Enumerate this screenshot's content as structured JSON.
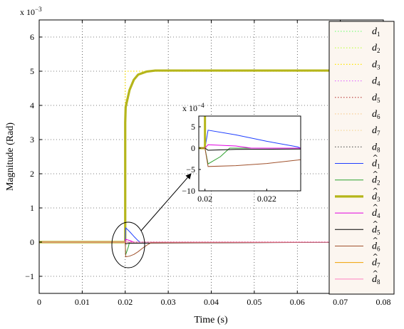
{
  "chart_data": [
    {
      "type": "line",
      "xlabel": "Time (s)",
      "ylabel": "Magnitude (Rad)",
      "x_ticks": [
        "0",
        "0.01",
        "0.02",
        "0.03",
        "0.04",
        "0.05",
        "0.06",
        "0.07",
        "0.08"
      ],
      "y_ticks": [
        "−1",
        "0",
        "1",
        "2",
        "3",
        "4",
        "5",
        "6"
      ],
      "y_exponent": "x 10",
      "y_exponent_power": "−3",
      "xlim": [
        0,
        0.08
      ],
      "ylim": [
        -1.5,
        6.5
      ],
      "grid": true,
      "legend_position": "right",
      "series": [
        {
          "name": "d",
          "sub": "1",
          "hat": false,
          "color": "#7fff7f",
          "style": "dotted",
          "x": [
            0,
            0.08
          ],
          "y": [
            0,
            0
          ]
        },
        {
          "name": "d",
          "sub": "2",
          "hat": false,
          "color": "#bfff3f",
          "style": "dotted",
          "x": [
            0,
            0.08
          ],
          "y": [
            0,
            0
          ]
        },
        {
          "name": "d",
          "sub": "3",
          "hat": false,
          "color": "#ffe600",
          "style": "dotted",
          "x": [
            0,
            0.02,
            0.02,
            0.08
          ],
          "y": [
            0,
            0,
            5,
            5
          ]
        },
        {
          "name": "d",
          "sub": "4",
          "hat": false,
          "color": "#e066ff",
          "style": "dotted",
          "x": [
            0,
            0.08
          ],
          "y": [
            0,
            0
          ]
        },
        {
          "name": "d",
          "sub": "5",
          "hat": false,
          "color": "#c0504d",
          "style": "dotted",
          "x": [
            0,
            0.08
          ],
          "y": [
            0,
            0
          ]
        },
        {
          "name": "d",
          "sub": "6",
          "hat": false,
          "color": "#f7c98b",
          "style": "dotted",
          "x": [
            0,
            0.08
          ],
          "y": [
            0,
            0
          ]
        },
        {
          "name": "d",
          "sub": "7",
          "hat": false,
          "color": "#f4d89a",
          "style": "dotted",
          "x": [
            0,
            0.08
          ],
          "y": [
            0,
            0
          ]
        },
        {
          "name": "d",
          "sub": "8",
          "hat": false,
          "color": "#555555",
          "style": "dotted",
          "x": [
            0,
            0.08
          ],
          "y": [
            0,
            0
          ]
        },
        {
          "name": "d",
          "sub": "1",
          "hat": true,
          "color": "#1f3fff",
          "style": "solid",
          "x": [
            0,
            0.02,
            0.0201,
            0.021,
            0.022,
            0.023,
            0.0235,
            0.08
          ],
          "y": [
            0,
            0,
            0.42,
            0.31,
            0.17,
            0.04,
            0,
            0
          ]
        },
        {
          "name": "d",
          "sub": "2",
          "hat": true,
          "color": "#2ca02c",
          "style": "solid",
          "x": [
            0,
            0.02,
            0.0201,
            0.0207,
            0.021,
            0.022,
            0.08
          ],
          "y": [
            0,
            0,
            -0.37,
            -0.15,
            0,
            0,
            0
          ]
        },
        {
          "name": "d",
          "sub": "3",
          "hat": true,
          "color": "#b5b51a",
          "style": "thick",
          "x": [
            0,
            0.02,
            0.02,
            0.0201,
            0.021,
            0.022,
            0.023,
            0.025,
            0.027,
            0.08
          ],
          "y": [
            0,
            0,
            3.5,
            3.95,
            4.45,
            4.75,
            4.9,
            4.99,
            5.02,
            5.02
          ]
        },
        {
          "name": "d",
          "sub": "4",
          "hat": true,
          "color": "#e000e0",
          "style": "solid",
          "x": [
            0,
            0.02,
            0.0201,
            0.021,
            0.022,
            0.08
          ],
          "y": [
            0,
            0,
            0.08,
            0.05,
            0,
            0
          ]
        },
        {
          "name": "d",
          "sub": "5",
          "hat": true,
          "color": "#000000",
          "style": "solid",
          "x": [
            0,
            0.02,
            0.0201,
            0.021,
            0.08
          ],
          "y": [
            0,
            0,
            -0.05,
            -0.03,
            0
          ]
        },
        {
          "name": "d",
          "sub": "6",
          "hat": true,
          "color": "#a0522d",
          "style": "solid",
          "x": [
            0,
            0.02,
            0.0201,
            0.021,
            0.022,
            0.023,
            0.024,
            0.025,
            0.026,
            0.08
          ],
          "y": [
            0,
            0,
            -0.43,
            -0.41,
            -0.36,
            -0.28,
            -0.18,
            -0.09,
            -0.02,
            0
          ]
        },
        {
          "name": "d",
          "sub": "7",
          "hat": true,
          "color": "#f0a000",
          "style": "solid",
          "x": [
            0,
            0.08
          ],
          "y": [
            0,
            0
          ]
        },
        {
          "name": "d",
          "sub": "8",
          "hat": true,
          "color": "#ff7fbf",
          "style": "solid",
          "x": [
            0,
            0.08
          ],
          "y": [
            0,
            0
          ]
        }
      ]
    },
    {
      "type": "line",
      "role": "inset",
      "x_ticks": [
        "0.02",
        "0.022"
      ],
      "y_ticks": [
        "−10",
        "−5",
        "0",
        "5"
      ],
      "y_exponent": "x 10",
      "y_exponent_power": "−4",
      "xlim": [
        0.0198,
        0.0231
      ],
      "ylim": [
        -10,
        7.5
      ],
      "grid": false,
      "series": [
        {
          "ref": "d̂1",
          "color": "#1f3fff",
          "x": [
            0.0198,
            0.02,
            0.0201,
            0.021,
            0.022,
            0.023,
            0.0231
          ],
          "y": [
            0,
            0,
            4.2,
            3.1,
            1.6,
            0.3,
            0
          ]
        },
        {
          "ref": "d̂2",
          "color": "#2ca02c",
          "x": [
            0.0198,
            0.02,
            0.0201,
            0.0205,
            0.0208,
            0.0231
          ],
          "y": [
            0,
            0,
            -3.7,
            -2.0,
            0,
            0
          ]
        },
        {
          "ref": "d̂3",
          "color": "#b5b51a",
          "x": [
            0.0198,
            0.02,
            0.02
          ],
          "y": [
            0,
            0,
            7.5
          ]
        },
        {
          "ref": "d̂4",
          "color": "#e000e0",
          "x": [
            0.0198,
            0.02,
            0.0201,
            0.021,
            0.0215,
            0.0231
          ],
          "y": [
            0,
            0,
            0.8,
            0.5,
            0,
            0
          ]
        },
        {
          "ref": "d̂5",
          "color": "#000000",
          "x": [
            0.0198,
            0.02,
            0.0201,
            0.021,
            0.0231
          ],
          "y": [
            0,
            0,
            -0.5,
            -0.3,
            -0.2
          ]
        },
        {
          "ref": "d̂6",
          "color": "#a0522d",
          "x": [
            0.0198,
            0.02,
            0.0201,
            0.021,
            0.022,
            0.023,
            0.0231
          ],
          "y": [
            0,
            0,
            -4.3,
            -4.1,
            -3.6,
            -2.8,
            -2.7
          ]
        }
      ]
    }
  ]
}
